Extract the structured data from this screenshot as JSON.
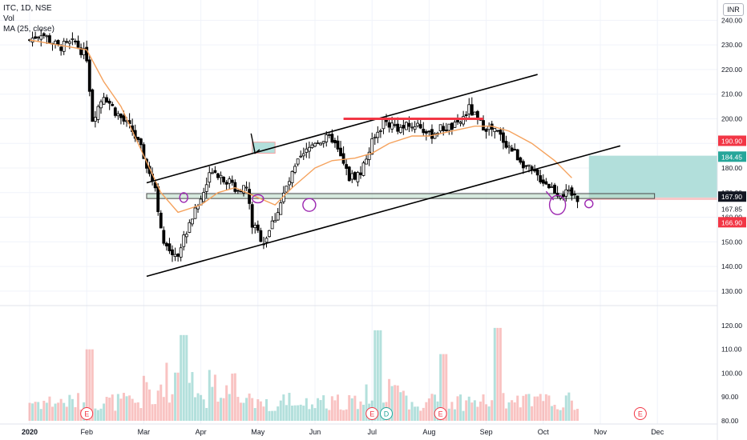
{
  "legend": {
    "symbol_line": "ITC, 1D, NSE",
    "vol_label": "Vol",
    "ma_label": "MA (25, close)"
  },
  "currency": "INR",
  "colors": {
    "up": "#26a69a",
    "down": "#ef5350",
    "ma": "#f5a25d",
    "zone": "#b2dfdb",
    "red_line": "#f23645",
    "candle": "#000000"
  },
  "chart_data": {
    "type": "candlestick",
    "price_axis": {
      "range": [
        128,
        245
      ],
      "ticks": [
        "240.00",
        "230.00",
        "220.00",
        "210.00",
        "200.00",
        "190.00",
        "180.00",
        "170.00",
        "160.00",
        "150.00",
        "140.00",
        "130.00"
      ]
    },
    "volume_axis": {
      "range": [
        80,
        125
      ],
      "ticks": [
        "120.00",
        "110.00",
        "100.00",
        "90.00",
        "80.00"
      ]
    },
    "time_axis": {
      "labels": [
        "2020",
        "Feb",
        "Mar",
        "Apr",
        "May",
        "Jun",
        "Jul",
        "Aug",
        "Sep",
        "Oct",
        "Nov",
        "Dec"
      ]
    },
    "price_badges": [
      {
        "label": "190.90",
        "value": 190.9,
        "color": "#f23645"
      },
      {
        "label": "184.45",
        "value": 184.45,
        "color": "#26a69a"
      },
      {
        "label": "167.90",
        "value": 167.9,
        "color": "#131722"
      },
      {
        "label": "167.85",
        "value": 167.85,
        "color": "none"
      },
      {
        "label": "166.90",
        "value": 166.9,
        "color": "#f23645"
      }
    ],
    "event_markers": [
      {
        "label": "E",
        "month": 1.0,
        "color": "#f23645"
      },
      {
        "label": "E",
        "month": 6.0,
        "color": "#f23645"
      },
      {
        "label": "D",
        "month": 6.25,
        "color": "#26a69a"
      },
      {
        "label": "E",
        "month": 7.2,
        "color": "#f23645"
      },
      {
        "label": "E",
        "month": 10.7,
        "color": "#f23645"
      }
    ],
    "price_path": [
      [
        0.0,
        232
      ],
      [
        0.2,
        235
      ],
      [
        0.5,
        229
      ],
      [
        0.8,
        231
      ],
      [
        1.0,
        225
      ],
      [
        1.1,
        200
      ],
      [
        1.3,
        210
      ],
      [
        1.5,
        203
      ],
      [
        1.8,
        195
      ],
      [
        2.0,
        185
      ],
      [
        2.2,
        172
      ],
      [
        2.35,
        148
      ],
      [
        2.6,
        145
      ],
      [
        2.8,
        158
      ],
      [
        3.0,
        167
      ],
      [
        3.2,
        180
      ],
      [
        3.4,
        176
      ],
      [
        3.6,
        172
      ],
      [
        3.8,
        172
      ],
      [
        3.9,
        157
      ],
      [
        4.1,
        150
      ],
      [
        4.3,
        160
      ],
      [
        4.5,
        172
      ],
      [
        4.7,
        182
      ],
      [
        5.0,
        191
      ],
      [
        5.3,
        192
      ],
      [
        5.6,
        176
      ],
      [
        5.8,
        178
      ],
      [
        6.0,
        190
      ],
      [
        6.2,
        199
      ],
      [
        6.5,
        196
      ],
      [
        6.8,
        198
      ],
      [
        7.0,
        193
      ],
      [
        7.2,
        196
      ],
      [
        7.5,
        197
      ],
      [
        7.7,
        204
      ],
      [
        7.9,
        198
      ],
      [
        8.2,
        194
      ],
      [
        8.5,
        186
      ],
      [
        8.8,
        178
      ],
      [
        9.0,
        175
      ],
      [
        9.25,
        170
      ],
      [
        9.5,
        169
      ],
      [
        9.6,
        167.9
      ]
    ],
    "ma_series": [
      [
        0.0,
        232
      ],
      [
        0.5,
        230
      ],
      [
        1.0,
        228
      ],
      [
        1.3,
        215
      ],
      [
        1.6,
        205
      ],
      [
        2.0,
        185
      ],
      [
        2.3,
        170
      ],
      [
        2.6,
        162
      ],
      [
        3.0,
        165
      ],
      [
        3.3,
        170
      ],
      [
        3.6,
        172
      ],
      [
        4.0,
        168
      ],
      [
        4.3,
        165
      ],
      [
        4.6,
        172
      ],
      [
        5.0,
        180
      ],
      [
        5.3,
        183
      ],
      [
        5.7,
        184
      ],
      [
        6.0,
        186
      ],
      [
        6.3,
        190
      ],
      [
        6.7,
        193
      ],
      [
        7.0,
        193
      ],
      [
        7.4,
        195
      ],
      [
        7.8,
        197
      ],
      [
        8.1,
        197
      ],
      [
        8.4,
        195
      ],
      [
        8.8,
        190
      ],
      [
        9.2,
        183
      ],
      [
        9.5,
        176
      ]
    ],
    "drawings": {
      "channel_upper": [
        [
          2.05,
          174
        ],
        [
          8.9,
          218
        ]
      ],
      "channel_lower": [
        [
          2.05,
          136
        ],
        [
          10.35,
          189
        ]
      ],
      "resistance_red": {
        "y": 200,
        "x": [
          5.5,
          7.95
        ]
      },
      "support_box": {
        "y": [
          167.6,
          169.6
        ],
        "x": [
          2.05,
          10.95
        ]
      },
      "target_zone": {
        "y": [
          168,
          185
        ],
        "x": [
          9.8,
          12.6
        ]
      },
      "stop_band": {
        "y": [
          167,
          168
        ],
        "x": [
          9.8,
          12.6
        ]
      },
      "small_zone": {
        "y": [
          186,
          190.5
        ],
        "x": [
          3.9,
          4.3
        ]
      }
    }
  }
}
